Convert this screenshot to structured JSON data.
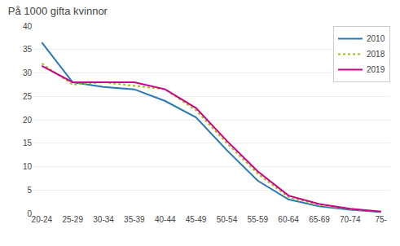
{
  "chart_data": {
    "type": "line",
    "title": "På 1000 gifta kvinnor",
    "categories": [
      "20-24",
      "25-29",
      "30-34",
      "35-39",
      "40-44",
      "45-49",
      "50-54",
      "55-59",
      "60-64",
      "65-69",
      "70-74",
      "75-"
    ],
    "series": [
      {
        "name": "2010",
        "color": "#2878b4",
        "line_style": "solid",
        "values": [
          36.5,
          28.0,
          27.0,
          26.5,
          24.0,
          20.5,
          13.5,
          7.0,
          3.0,
          1.5,
          0.8,
          0.3
        ]
      },
      {
        "name": "2018",
        "color": "#aaba14",
        "line_style": "dotted",
        "values": [
          32.0,
          27.5,
          28.0,
          27.2,
          26.5,
          22.0,
          15.0,
          8.5,
          3.5,
          1.8,
          0.9,
          0.4
        ]
      },
      {
        "name": "2019",
        "color": "#c8008c",
        "line_style": "solid",
        "values": [
          31.5,
          28.0,
          28.0,
          28.0,
          26.5,
          22.5,
          15.5,
          9.0,
          3.8,
          2.0,
          1.0,
          0.4
        ]
      }
    ],
    "ylim": [
      0,
      40
    ],
    "yticks": [
      0,
      5,
      10,
      15,
      20,
      25,
      30,
      35,
      40
    ],
    "grid": true,
    "legend": "upper right"
  }
}
